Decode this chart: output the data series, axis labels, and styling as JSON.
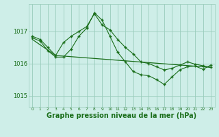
{
  "bg_color": "#ceeee8",
  "grid_color": "#99ccbb",
  "line_color": "#1a6e1a",
  "xlabel": "Graphe pression niveau de la mer (hPa)",
  "xlabel_fontsize": 7,
  "yticks": [
    1015,
    1016,
    1017
  ],
  "ylim": [
    1014.65,
    1017.85
  ],
  "xlim": [
    -0.5,
    23.5
  ],
  "xtick_labels": [
    "0",
    "1",
    "2",
    "3",
    "4",
    "5",
    "6",
    "7",
    "8",
    "9",
    "10",
    "11",
    "12",
    "13",
    "14",
    "15",
    "16",
    "17",
    "18",
    "19",
    "20",
    "21",
    "22",
    "23"
  ],
  "line1_x": [
    0,
    1,
    2,
    3,
    4,
    5,
    6,
    7,
    8,
    9,
    10,
    11,
    12,
    13,
    14,
    15,
    16,
    17,
    18,
    19,
    20,
    21,
    22,
    23
  ],
  "line1_y": [
    1016.85,
    1016.75,
    1016.5,
    1016.25,
    1016.65,
    1016.85,
    1017.0,
    1017.15,
    1017.55,
    1017.2,
    1017.05,
    1016.75,
    1016.5,
    1016.3,
    1016.05,
    1016.0,
    1015.9,
    1015.8,
    1015.85,
    1015.95,
    1016.05,
    1015.98,
    1015.93,
    1015.88
  ],
  "line2_x": [
    0,
    1,
    2,
    3,
    4,
    5,
    6,
    7,
    8,
    9,
    10,
    11,
    12,
    13,
    14,
    15,
    16,
    17,
    18,
    19,
    20,
    21,
    22,
    23
  ],
  "line2_y": [
    1016.8,
    1016.7,
    1016.4,
    1016.2,
    1016.2,
    1016.45,
    1016.85,
    1017.1,
    1017.58,
    1017.35,
    1016.85,
    1016.35,
    1016.05,
    1015.75,
    1015.65,
    1015.62,
    1015.5,
    1015.35,
    1015.58,
    1015.8,
    1015.9,
    1015.92,
    1015.82,
    1015.95
  ],
  "line3_x": [
    0,
    3,
    23
  ],
  "line3_y": [
    1016.75,
    1016.25,
    1015.88
  ]
}
